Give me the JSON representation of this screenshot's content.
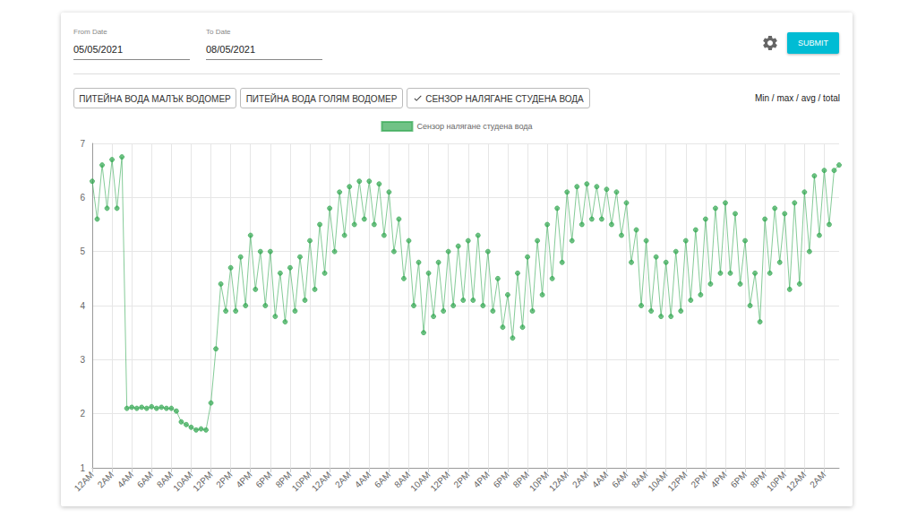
{
  "page": {
    "from_date": {
      "label": "From Date",
      "value": "05/05/2021"
    },
    "to_date": {
      "label": "To Date",
      "value": "08/05/2021"
    },
    "submit": "SUBMIT",
    "buttons": [
      {
        "label": "ПИТЕЙНА ВОДА МАЛЪК ВОДОМЕР",
        "selected": false
      },
      {
        "label": "ПИТЕЙНА ВОДА ГОЛЯМ ВОДОМЕР",
        "selected": false
      },
      {
        "label": "СЕНЗОР НАЛЯГАНЕ СТУДЕНА ВОДА",
        "selected": true
      }
    ],
    "stats": "Min / max / avg / total"
  },
  "chart_data": {
    "type": "line",
    "marker": "circle",
    "legend": "top",
    "grid": true,
    "ylim": [
      1,
      7
    ],
    "yticks": [
      1,
      2,
      3,
      4,
      5,
      6,
      7
    ],
    "categories": [
      "12AM",
      null,
      null,
      null,
      "2AM",
      null,
      null,
      null,
      "4AM",
      null,
      null,
      null,
      "6AM",
      null,
      null,
      null,
      "8AM",
      null,
      null,
      null,
      "10AM",
      null,
      null,
      null,
      "12PM",
      null,
      null,
      null,
      "2PM",
      null,
      null,
      null,
      "4PM",
      null,
      null,
      null,
      "6PM",
      null,
      null,
      null,
      "8PM",
      null,
      null,
      null,
      "10PM",
      null,
      null,
      null,
      "12AM",
      null,
      null,
      null,
      "2AM",
      null,
      null,
      null,
      "4AM",
      null,
      null,
      null,
      "6AM",
      null,
      null,
      null,
      "8AM",
      null,
      null,
      null,
      "10AM",
      null,
      null,
      null,
      "12PM",
      null,
      null,
      null,
      "2PM",
      null,
      null,
      null,
      "4PM",
      null,
      null,
      null,
      "6PM",
      null,
      null,
      null,
      "8PM",
      null,
      null,
      null,
      "10PM",
      null,
      null,
      null,
      "12AM",
      null,
      null,
      null,
      "2AM",
      null,
      null,
      null,
      "4AM",
      null,
      null,
      null,
      "6AM",
      null,
      null,
      null,
      "8AM",
      null,
      null,
      null,
      "10AM",
      null,
      null,
      null,
      "12PM",
      null,
      null,
      null,
      "2PM",
      null,
      null,
      null,
      "4PM",
      null,
      null,
      null,
      "6PM",
      null,
      null,
      null,
      "8PM",
      null,
      null,
      null,
      "10PM",
      null,
      null,
      null,
      "12AM",
      null,
      null,
      null,
      "2AM",
      null,
      null,
      null
    ],
    "series": [
      {
        "name": "Сензор налягане студена вода",
        "color": "#34a853",
        "values": [
          6.3,
          5.6,
          6.6,
          5.8,
          6.7,
          5.8,
          6.75,
          2.1,
          2.12,
          2.1,
          2.12,
          2.1,
          2.13,
          2.1,
          2.12,
          2.1,
          2.1,
          2.05,
          1.85,
          1.8,
          1.75,
          1.7,
          1.72,
          1.7,
          2.2,
          3.2,
          4.4,
          3.9,
          4.7,
          3.9,
          4.9,
          4.0,
          5.3,
          4.3,
          5.0,
          4.0,
          5.0,
          3.8,
          4.6,
          3.7,
          4.7,
          3.9,
          4.9,
          4.1,
          5.2,
          4.3,
          5.5,
          4.6,
          5.8,
          5.0,
          6.1,
          5.3,
          6.2,
          5.5,
          6.3,
          5.6,
          6.3,
          5.5,
          6.25,
          5.3,
          6.1,
          5.0,
          5.6,
          4.5,
          5.2,
          4.0,
          4.8,
          3.5,
          4.6,
          3.8,
          4.8,
          3.9,
          5.0,
          4.0,
          5.1,
          4.1,
          5.2,
          4.1,
          5.3,
          4.0,
          5.0,
          3.9,
          4.5,
          3.6,
          4.2,
          3.4,
          4.6,
          3.6,
          4.9,
          3.9,
          5.2,
          4.2,
          5.5,
          4.5,
          5.8,
          4.8,
          6.1,
          5.2,
          6.2,
          5.5,
          6.25,
          5.6,
          6.2,
          5.6,
          6.15,
          5.5,
          6.1,
          5.3,
          5.9,
          4.8,
          5.4,
          4.0,
          5.2,
          3.9,
          4.9,
          3.8,
          4.8,
          3.8,
          5.0,
          3.9,
          5.2,
          4.1,
          5.4,
          4.2,
          5.6,
          4.4,
          5.8,
          4.6,
          5.9,
          4.6,
          5.7,
          4.4,
          5.2,
          4.0,
          4.6,
          3.7,
          5.6,
          4.6,
          5.8,
          4.8,
          5.7,
          4.3,
          5.9,
          4.4,
          6.1,
          5.0,
          6.4,
          5.3,
          6.5,
          5.5,
          6.5,
          6.6
        ]
      }
    ]
  }
}
